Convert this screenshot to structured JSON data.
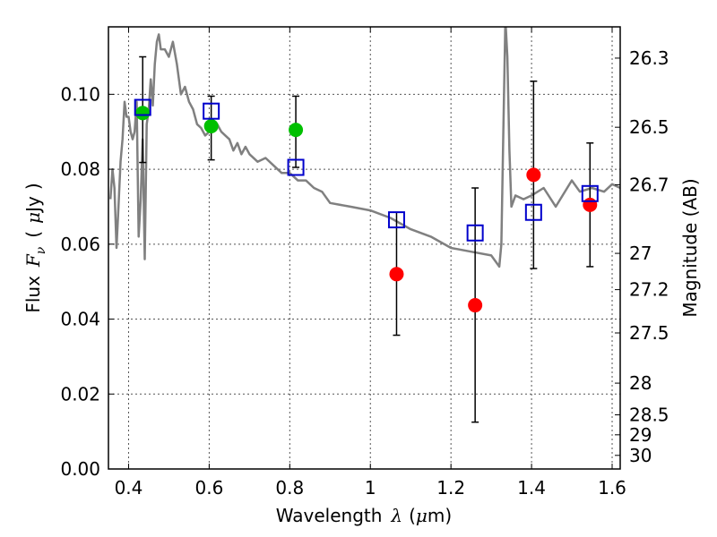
{
  "chart_data": {
    "type": "scatter",
    "xlabel_parts": [
      "Wavelength",
      "λ",
      "(",
      "μ",
      "m)"
    ],
    "ylabel_parts": [
      "Flux",
      "F",
      "ν",
      "(",
      "μ",
      "Jy",
      ")"
    ],
    "y2label": "Magnitude (AB)",
    "xlim": [
      0.35,
      1.62
    ],
    "ylim": [
      0.0,
      0.118
    ],
    "grid": true,
    "x_ticks": [
      {
        "value": 0.4,
        "label": "0.4"
      },
      {
        "value": 0.6,
        "label": "0.6"
      },
      {
        "value": 0.8,
        "label": "0.8"
      },
      {
        "value": 1.0,
        "label": "1"
      },
      {
        "value": 1.2,
        "label": "1.2"
      },
      {
        "value": 1.4,
        "label": "1.4"
      },
      {
        "value": 1.6,
        "label": "1.6"
      }
    ],
    "y_ticks": [
      {
        "value": 0.0,
        "label": "0.00"
      },
      {
        "value": 0.02,
        "label": "0.02"
      },
      {
        "value": 0.04,
        "label": "0.04"
      },
      {
        "value": 0.06,
        "label": "0.06"
      },
      {
        "value": 0.08,
        "label": "0.08"
      },
      {
        "value": 0.1,
        "label": "0.10"
      }
    ],
    "magnitude_ticks": [
      {
        "value": 26.3,
        "label": "26.3"
      },
      {
        "value": 26.5,
        "label": "26.5"
      },
      {
        "value": 26.7,
        "label": "26.7"
      },
      {
        "value": 27.0,
        "label": "27"
      },
      {
        "value": 27.2,
        "label": "27.2"
      },
      {
        "value": 27.5,
        "label": "27.5"
      },
      {
        "value": 28.0,
        "label": "28"
      },
      {
        "value": 28.5,
        "label": "28.5"
      },
      {
        "value": 29.0,
        "label": "29"
      },
      {
        "value": 30.0,
        "label": "30"
      }
    ],
    "colors": {
      "sed": "#808080",
      "detection": "#00c000",
      "nondetection": "#ff0000",
      "model": "#0000cc",
      "errorbar": "#000000"
    },
    "series": [
      {
        "marker": "line",
        "x": [
          0.355,
          0.36,
          0.365,
          0.37,
          0.375,
          0.38,
          0.385,
          0.39,
          0.395,
          0.4,
          0.405,
          0.41,
          0.415,
          0.42,
          0.425,
          0.43,
          0.435,
          0.44,
          0.445,
          0.45,
          0.455,
          0.46,
          0.465,
          0.47,
          0.475,
          0.48,
          0.49,
          0.5,
          0.51,
          0.52,
          0.53,
          0.54,
          0.55,
          0.56,
          0.57,
          0.58,
          0.59,
          0.6,
          0.61,
          0.62,
          0.63,
          0.64,
          0.65,
          0.66,
          0.67,
          0.68,
          0.69,
          0.7,
          0.72,
          0.74,
          0.76,
          0.78,
          0.8,
          0.82,
          0.84,
          0.86,
          0.88,
          0.9,
          0.95,
          1.0,
          1.05,
          1.1,
          1.15,
          1.2,
          1.25,
          1.3,
          1.32,
          1.325,
          1.33,
          1.335,
          1.34,
          1.345,
          1.35,
          1.36,
          1.38,
          1.4,
          1.43,
          1.46,
          1.5,
          1.52,
          1.55,
          1.58,
          1.6,
          1.62
        ],
        "y": [
          0.072,
          0.08,
          0.075,
          0.059,
          0.07,
          0.082,
          0.088,
          0.098,
          0.094,
          0.094,
          0.09,
          0.088,
          0.09,
          0.098,
          0.062,
          0.072,
          0.088,
          0.056,
          0.092,
          0.096,
          0.104,
          0.097,
          0.108,
          0.114,
          0.116,
          0.112,
          0.112,
          0.11,
          0.114,
          0.108,
          0.1,
          0.102,
          0.098,
          0.096,
          0.092,
          0.091,
          0.089,
          0.09,
          0.093,
          0.092,
          0.09,
          0.089,
          0.088,
          0.085,
          0.087,
          0.084,
          0.086,
          0.084,
          0.082,
          0.083,
          0.081,
          0.079,
          0.079,
          0.077,
          0.077,
          0.075,
          0.074,
          0.071,
          0.07,
          0.069,
          0.067,
          0.064,
          0.062,
          0.059,
          0.058,
          0.057,
          0.054,
          0.06,
          0.09,
          0.12,
          0.11,
          0.085,
          0.07,
          0.073,
          0.072,
          0.073,
          0.075,
          0.07,
          0.077,
          0.074,
          0.075,
          0.074,
          0.076,
          0.075
        ]
      },
      {
        "marker": "circle",
        "x": [
          0.435,
          0.605,
          0.815
        ],
        "y": [
          0.095,
          0.0915,
          0.0905
        ]
      },
      {
        "marker": "circle",
        "x": [
          1.065,
          1.26,
          1.405,
          1.545
        ],
        "y": [
          0.052,
          0.0437,
          0.0785,
          0.0705
        ]
      },
      {
        "marker": "square",
        "x": [
          0.435,
          0.605,
          0.815,
          1.065,
          1.26,
          1.405,
          1.545
        ],
        "y": [
          0.0965,
          0.0955,
          0.0805,
          0.0665,
          0.063,
          0.0685,
          0.0735
        ]
      }
    ],
    "errorbars": [
      {
        "x": 0.435,
        "low": 0.0818,
        "high": 0.11
      },
      {
        "x": 0.605,
        "low": 0.0825,
        "high": 0.0995
      },
      {
        "x": 0.815,
        "low": 0.0805,
        "high": 0.0995
      },
      {
        "x": 1.065,
        "low": 0.0357,
        "high": 0.0685
      },
      {
        "x": 1.26,
        "low": 0.0125,
        "high": 0.075
      },
      {
        "x": 1.405,
        "low": 0.0535,
        "high": 0.1035
      },
      {
        "x": 1.545,
        "low": 0.054,
        "high": 0.087
      }
    ]
  }
}
